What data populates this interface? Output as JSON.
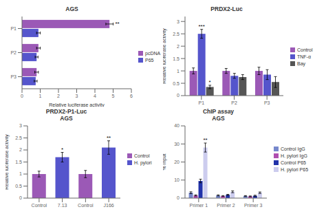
{
  "chart_data": [
    {
      "type": "bar",
      "orientation": "horizontal",
      "title": "AGS",
      "categories": [
        "P1",
        "P2",
        "P3"
      ],
      "series": [
        {
          "name": "pcDNA",
          "color": "#9b59b6",
          "values": [
            4.8,
            0.9,
            0.8
          ],
          "errors": [
            0.2,
            0.1,
            0.1
          ]
        },
        {
          "name": "P65",
          "color": "#5555cc",
          "values": [
            0.9,
            0.8,
            0.75
          ],
          "errors": [
            0.1,
            0.08,
            0.08
          ]
        }
      ],
      "xlabel": "Relative luciferase activity",
      "xlim": [
        0,
        6
      ],
      "xticks": [
        0,
        1,
        2,
        3,
        4,
        5,
        6
      ],
      "grid": false,
      "legend": "right",
      "annotations": [
        {
          "text": "**",
          "category": "P1",
          "series": "pcDNA"
        }
      ]
    },
    {
      "type": "bar",
      "title": "PRDX2-Luc",
      "categories": [
        "P1",
        "P2",
        "P3"
      ],
      "series": [
        {
          "name": "Control",
          "color": "#9b59b6",
          "values": [
            1.0,
            1.0,
            1.0
          ],
          "errors": [
            0.12,
            0.1,
            0.15
          ]
        },
        {
          "name": "TNF-α",
          "color": "#5555cc",
          "values": [
            2.5,
            0.8,
            0.85
          ],
          "errors": [
            0.18,
            0.1,
            0.2
          ]
        },
        {
          "name": "Bay",
          "color": "#555555",
          "values": [
            0.35,
            0.75,
            0.55
          ],
          "errors": [
            0.07,
            0.1,
            0.22
          ]
        }
      ],
      "ylabel": "Relative luciferase activity",
      "ylim": [
        0,
        3.2
      ],
      "yticks": [
        0,
        0.5,
        1,
        1.5,
        2,
        2.5,
        3
      ],
      "grid": false,
      "legend": "right",
      "annotations": [
        {
          "text": "***",
          "category": "P1",
          "series": "TNF-α"
        },
        {
          "text": "*",
          "category": "P1",
          "series": "Bay"
        }
      ]
    },
    {
      "type": "bar",
      "title": "PRDX2-P1-Luc",
      "subtitle": "AGS",
      "categories": [
        "Control",
        "7.13",
        "Control",
        "J166"
      ],
      "series": [
        {
          "name": "Control",
          "color": "#9b59b6",
          "values": [
            1.0,
            null,
            1.0,
            null
          ],
          "errors": [
            0.12,
            null,
            0.15,
            null
          ]
        },
        {
          "name": "H. pylori",
          "color": "#5555cc",
          "values": [
            null,
            1.7,
            null,
            2.1
          ],
          "errors": [
            null,
            0.2,
            null,
            0.28
          ]
        }
      ],
      "ylabel": "Relative luciferase activity",
      "ylim": [
        0,
        3
      ],
      "yticks": [
        0,
        0.5,
        1,
        1.5,
        2,
        2.5,
        3
      ],
      "grid": false,
      "legend": "right",
      "annotations": [
        {
          "text": "*",
          "category": "7.13",
          "series": "H. pylori"
        },
        {
          "text": "**",
          "category": "J166",
          "series": "H. pylori"
        }
      ]
    },
    {
      "type": "bar",
      "title": "ChIP assay",
      "subtitle": "AGS",
      "categories": [
        "Primer 1",
        "Primer 2",
        "Primer 3"
      ],
      "series": [
        {
          "name": "Control IgG",
          "color": "#7788cc",
          "values": [
            3.0,
            1.5,
            1.2
          ],
          "errors": [
            0.5,
            0.3,
            0.2
          ]
        },
        {
          "name": "H. pylori IgG",
          "color": "#b04eb0",
          "values": [
            1.5,
            1.2,
            1.0
          ],
          "errors": [
            0.3,
            0.2,
            0.2
          ]
        },
        {
          "name": "Control P65",
          "color": "#2233aa",
          "values": [
            9.5,
            1.8,
            1.3
          ],
          "errors": [
            1.0,
            0.3,
            0.3
          ]
        },
        {
          "name": "H. pylori P65",
          "color": "#ccccee",
          "values": [
            28.0,
            3.5,
            3.0
          ],
          "errors": [
            2.5,
            0.5,
            0.4
          ]
        }
      ],
      "ylabel": "% Input",
      "ylim": [
        0,
        40
      ],
      "yticks": [
        0,
        10,
        20,
        30,
        40
      ],
      "grid": false,
      "legend": "right",
      "annotations": [
        {
          "text": "**",
          "category": "Primer 1",
          "series": "H. pylori P65"
        }
      ]
    }
  ]
}
